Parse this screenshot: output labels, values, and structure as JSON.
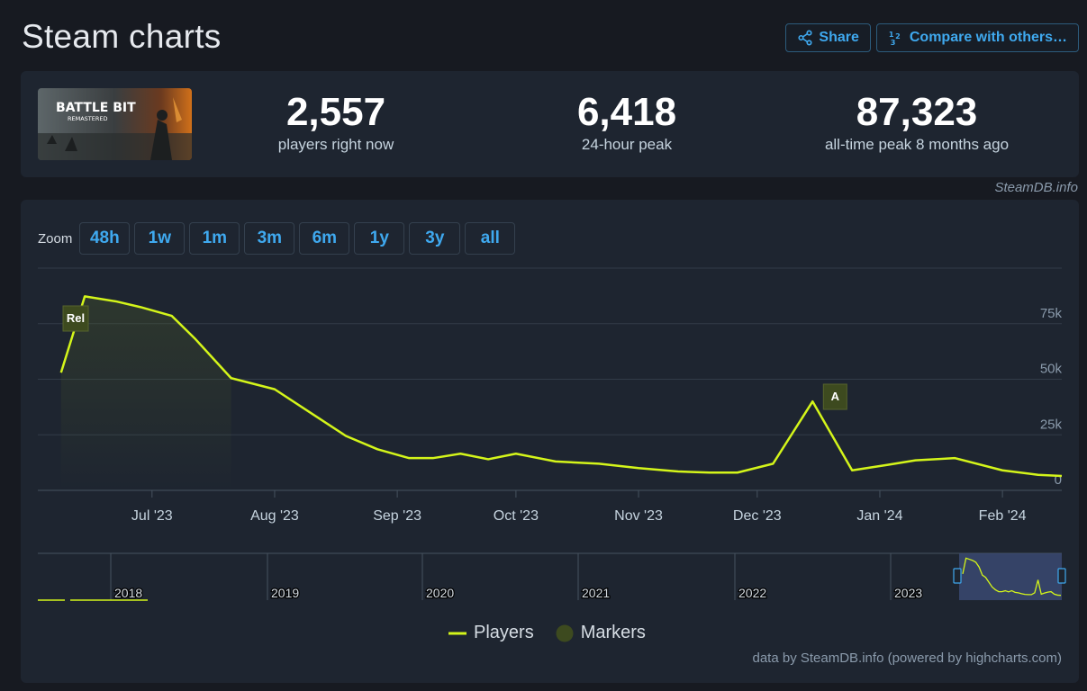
{
  "page": {
    "title": "Steam charts"
  },
  "actions": {
    "share": "Share",
    "compare": "Compare with others…"
  },
  "game": {
    "logo_line1": "BATTLE BIT",
    "logo_line2": "REMASTERED"
  },
  "stats": [
    {
      "value": "2,557",
      "label": "players right now"
    },
    {
      "value": "6,418",
      "label": "24-hour peak"
    },
    {
      "value": "87,323",
      "label": "all-time peak 8 months ago"
    }
  ],
  "credit_top": "SteamDB.info",
  "zoom": {
    "label": "Zoom",
    "options": [
      "48h",
      "1w",
      "1m",
      "3m",
      "6m",
      "1y",
      "3y",
      "all"
    ]
  },
  "colors": {
    "players_line": "#d4f51a",
    "marker_fill": "#3d4a1f",
    "panel": "#1e2530",
    "accent": "#3fa9ef"
  },
  "chart_data": {
    "type": "line",
    "series": [
      {
        "name": "Players",
        "x": [
          "2023-06-08",
          "2023-06-14",
          "2023-06-22",
          "2023-06-28",
          "2023-07-06",
          "2023-07-12",
          "2023-07-21",
          "2023-08-01",
          "2023-08-10",
          "2023-08-19",
          "2023-08-27",
          "2023-09-04",
          "2023-09-10",
          "2023-09-17",
          "2023-09-24",
          "2023-10-01",
          "2023-10-11",
          "2023-10-22",
          "2023-11-01",
          "2023-11-11",
          "2023-11-19",
          "2023-11-26",
          "2023-12-05",
          "2023-12-15",
          "2023-12-25",
          "2024-01-03",
          "2024-01-10",
          "2024-01-20",
          "2024-02-01",
          "2024-02-10",
          "2024-02-16"
        ],
        "values": [
          53000,
          87300,
          85000,
          82500,
          78500,
          68000,
          50500,
          45500,
          35000,
          24500,
          18500,
          14500,
          14500,
          16500,
          14000,
          16500,
          13000,
          12000,
          10000,
          8500,
          8000,
          8000,
          12000,
          40000,
          9000,
          11500,
          13500,
          14500,
          9000,
          7000,
          6500
        ]
      }
    ],
    "markers": [
      {
        "label": "Rel",
        "x": "2023-06-14"
      },
      {
        "label": "A",
        "x": "2023-12-15"
      }
    ],
    "xlabels": [
      "Jul '23",
      "Aug '23",
      "Sep '23",
      "Oct '23",
      "Nov '23",
      "Dec '23",
      "Jan '24",
      "Feb '24"
    ],
    "ylabels": [
      "0",
      "25k",
      "50k",
      "75k"
    ],
    "ylim": [
      0,
      100000
    ],
    "navigator_years": [
      "2018",
      "2019",
      "2020",
      "2021",
      "2022",
      "2023"
    ],
    "legend": [
      "Players",
      "Markers"
    ],
    "legend_position": "bottom-center"
  },
  "credit_bottom": "data by SteamDB.info (powered by highcharts.com)"
}
